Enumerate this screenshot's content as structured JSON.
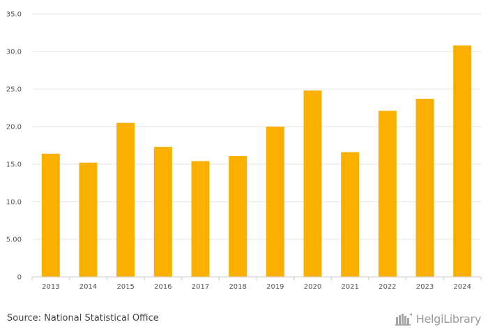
{
  "chart_data": {
    "type": "bar",
    "title": "",
    "xlabel": "",
    "ylabel": "",
    "categories": [
      "2013",
      "2014",
      "2015",
      "2016",
      "2017",
      "2018",
      "2019",
      "2020",
      "2021",
      "2022",
      "2023",
      "2024"
    ],
    "values": [
      16.4,
      15.2,
      20.5,
      17.3,
      15.4,
      16.1,
      20.0,
      24.8,
      16.6,
      22.1,
      23.7,
      30.8
    ],
    "ylim": [
      0,
      35
    ],
    "yticks": [
      0,
      5,
      10,
      15,
      20,
      25,
      30,
      35
    ],
    "ytick_labels": [
      "0",
      "5.00",
      "10.0",
      "15.0",
      "20.0",
      "25.0",
      "30.0",
      "35.0"
    ],
    "grid": true,
    "bar_color": "#F9B000"
  },
  "source": "Source: National Statistical Office",
  "logo": {
    "text": "HelgiLibrary",
    "icon": "helgi-library-icon"
  }
}
